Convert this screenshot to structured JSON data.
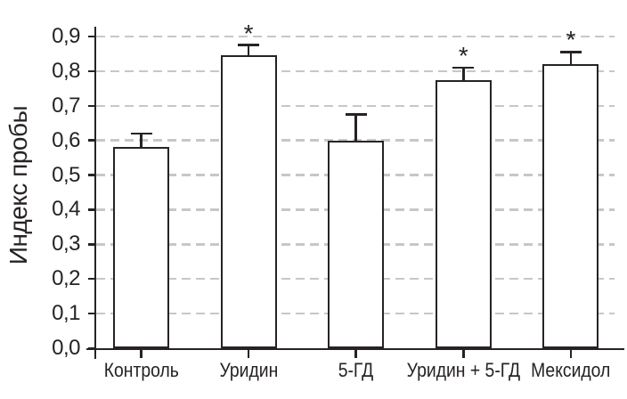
{
  "chart_data": {
    "type": "bar",
    "title": "",
    "xlabel": "",
    "ylabel": "Индекс пробы",
    "categories": [
      "Контроль",
      "Уридин",
      "5-ГД",
      "Уридин + 5-ГД",
      "Мексидол"
    ],
    "values": [
      0.58,
      0.845,
      0.6,
      0.775,
      0.82
    ],
    "errors_upper": [
      0.04,
      0.03,
      0.075,
      0.035,
      0.035
    ],
    "significance_markers": [
      "",
      "*",
      "",
      "*",
      "*"
    ],
    "ylim": [
      0,
      0.9
    ],
    "ytick_labels": [
      "0,0",
      "0,1",
      "0,2",
      "0,3",
      "0,4",
      "0,5",
      "0,6",
      "0,7",
      "0,8",
      "0,9"
    ],
    "ytick_values": [
      0,
      0.1,
      0.2,
      0.3,
      0.4,
      0.5,
      0.6,
      0.7,
      0.8,
      0.9
    ],
    "decimal_separator": ",",
    "grid": "horizontal-dashed",
    "legend": "none",
    "bar_fill_color": "#ffffff",
    "line_color": "#272324",
    "grid_color": "#c7c7c7"
  }
}
